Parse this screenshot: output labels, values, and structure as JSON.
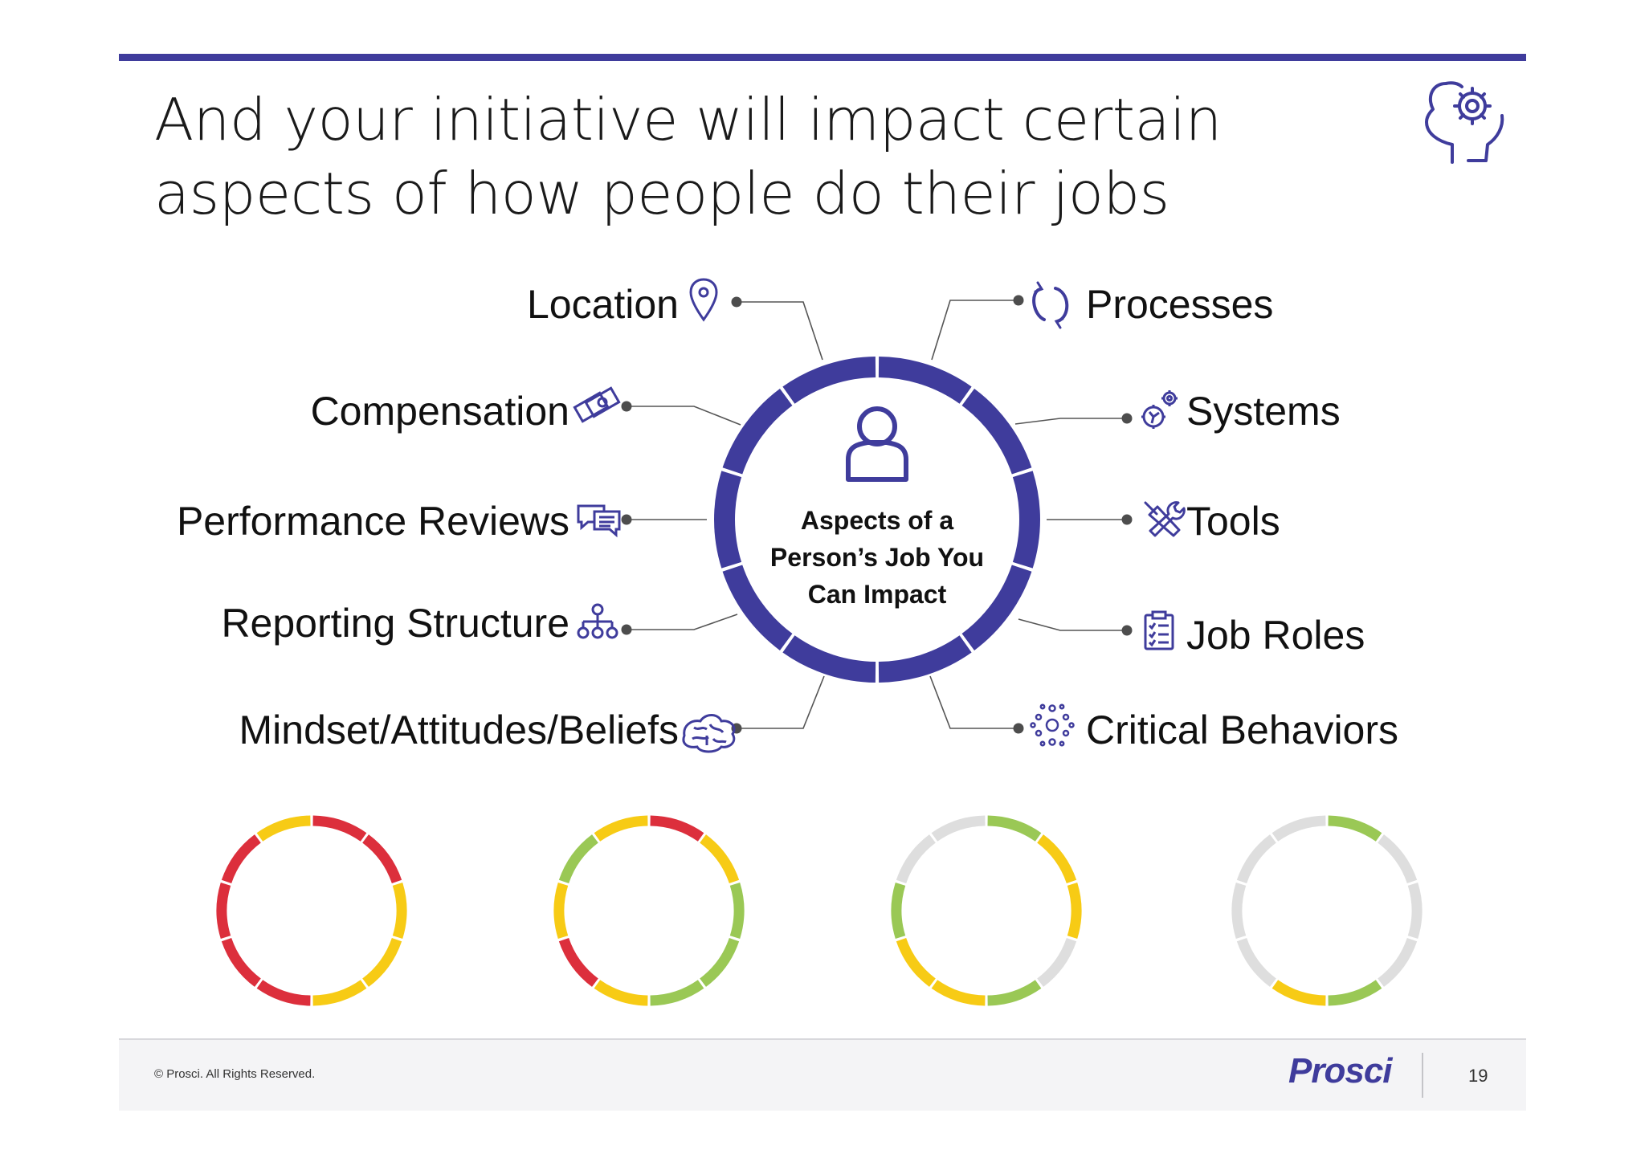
{
  "title": {
    "line1": "And your initiative will impact certain",
    "line2": "aspects of how people do their jobs"
  },
  "header_icon": "head-gear-icon",
  "center": {
    "lines": [
      "Aspects of a",
      "Person’s Job You",
      "Can Impact"
    ],
    "icon": "person-icon"
  },
  "aspects_left": [
    {
      "label": "Location",
      "icon": "location-pin-icon"
    },
    {
      "label": "Compensation",
      "icon": "money-icon"
    },
    {
      "label": "Performance Reviews",
      "icon": "chat-bubbles-icon"
    },
    {
      "label": "Reporting Structure",
      "icon": "org-chart-icon"
    },
    {
      "label": "Mindset/Attitudes/Beliefs",
      "icon": "brain-icon"
    }
  ],
  "aspects_right": [
    {
      "label": "Processes",
      "icon": "refresh-icon"
    },
    {
      "label": "Systems",
      "icon": "gears-icon"
    },
    {
      "label": "Tools",
      "icon": "tools-icon"
    },
    {
      "label": "Job Roles",
      "icon": "clipboard-icon"
    },
    {
      "label": "Critical Behaviors",
      "icon": "network-icon"
    }
  ],
  "colors": {
    "accent": "#3f3c9c",
    "red": "#dc2f3c",
    "yellow": "#f7cb15",
    "green": "#9ac855",
    "gray": "#dedede"
  },
  "impact_rings": [
    [
      "red",
      "red",
      "yellow",
      "yellow",
      "yellow",
      "red",
      "red",
      "red",
      "red",
      "yellow"
    ],
    [
      "red",
      "yellow",
      "green",
      "green",
      "green",
      "yellow",
      "red",
      "yellow",
      "green",
      "yellow"
    ],
    [
      "green",
      "yellow",
      "yellow",
      "gray",
      "green",
      "yellow",
      "yellow",
      "green",
      "gray",
      "gray"
    ],
    [
      "green",
      "gray",
      "gray",
      "gray",
      "green",
      "yellow",
      "gray",
      "gray",
      "gray",
      "gray"
    ]
  ],
  "footer": {
    "copyright": "© Prosci. All Rights Reserved.",
    "logo": "Prosci",
    "page_number": "19"
  }
}
